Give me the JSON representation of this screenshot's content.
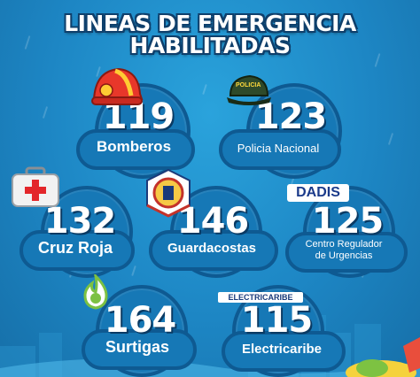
{
  "title": {
    "line1": "LINEAS DE EMERGENCIA",
    "line2": "HABILITADAS"
  },
  "cards": {
    "bomberos": {
      "number": "119",
      "label": "Bomberos"
    },
    "policia": {
      "number": "123",
      "label": "Policia Nacional",
      "badge": "POLICIA"
    },
    "cruz_roja": {
      "number": "132",
      "label": "Cruz Roja"
    },
    "guardacostas": {
      "number": "146",
      "label": "Guardacostas"
    },
    "crue": {
      "number": "125",
      "label_line1": "Centro Regulador",
      "label_line2": "de Urgencias",
      "logo": "DADIS"
    },
    "surtigas": {
      "number": "164",
      "label": "Surtigas"
    },
    "electricaribe": {
      "number": "115",
      "label": "Electricaribe",
      "logo": "ELECTRICARIBE"
    }
  },
  "colors": {
    "background": "#1d86c4",
    "card": "#1678b6",
    "card_border": "#0e5a92",
    "outline": "#0a3a63"
  },
  "icons": [
    "firefighter-helmet-icon",
    "police-cap-icon",
    "first-aid-kit-icon",
    "coast-guard-emblem-icon",
    "dadis-logo",
    "surtigas-flame-icon",
    "electricaribe-logo"
  ]
}
